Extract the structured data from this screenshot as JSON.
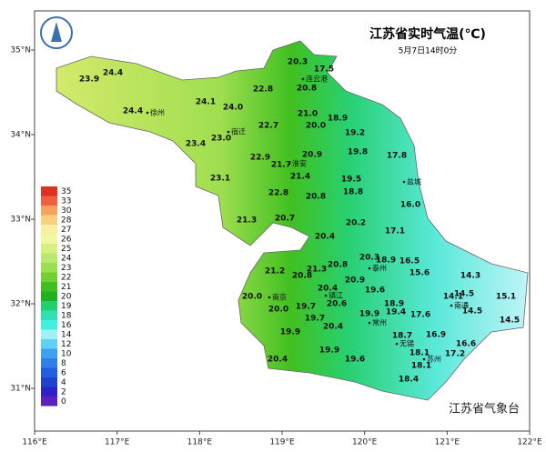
{
  "header": {
    "title": "江苏省实时气温(℃)",
    "subtitle": "5月7日14时0分"
  },
  "axes": {
    "lat": [
      "35°N",
      "34°N",
      "33°N",
      "32°N",
      "31°N"
    ],
    "lon": [
      "116°E",
      "117°E",
      "118°E",
      "119°E",
      "120°E",
      "121°E",
      "122°E"
    ]
  },
  "legend": {
    "values": [
      35,
      33,
      30,
      28,
      27,
      26,
      25,
      24,
      23,
      22,
      21,
      20,
      19,
      18,
      16,
      14,
      12,
      10,
      8,
      6,
      4,
      2,
      0
    ],
    "colors": [
      "#e03020",
      "#f06040",
      "#f8a060",
      "#f8d080",
      "#f8f0a0",
      "#f0f8a0",
      "#d8f080",
      "#b8e870",
      "#98e050",
      "#70d030",
      "#40c020",
      "#20b020",
      "#20d070",
      "#30e0b0",
      "#40f0e0",
      "#a0f0f8",
      "#60d0f8",
      "#40a0f0",
      "#3080e8",
      "#2060e0",
      "#2040d0",
      "#3020c8",
      "#6020c0"
    ]
  },
  "cities": [
    "连云港",
    "徐州",
    "宿迁",
    "淮安",
    "盐城",
    "泰州",
    "南京",
    "镇江",
    "常州",
    "南通",
    "无锡",
    "苏州"
  ],
  "stations": [
    "23.9",
    "24.4",
    "24.4",
    "24.1",
    "24.0",
    "22.8",
    "20.3",
    "17.5",
    "20.8",
    "23.0",
    "23.4",
    "22.7",
    "21.0",
    "20.0",
    "18.9",
    "19.2",
    "22.9",
    "21.7",
    "20.9",
    "19.8",
    "17.8",
    "21.4",
    "23.1",
    "19.5",
    "22.8",
    "20.8",
    "18.8",
    "16.0",
    "21.3",
    "20.7",
    "20.2",
    "17.1",
    "20.4",
    "20.3",
    "18.9",
    "16.5",
    "15.6",
    "14.3",
    "21.2",
    "20.8",
    "21.3",
    "20.8",
    "20.9",
    "20.4",
    "19.6",
    "20.0",
    "20.6",
    "14.1",
    "14.5",
    "15.1",
    "20.0",
    "19.7",
    "18.9",
    "19.9",
    "19.4",
    "17.6",
    "14.5",
    "19.7",
    "20.4",
    "14.5",
    "19.9",
    "18.7",
    "16.9",
    "18.1",
    "16.6",
    "17.2",
    "19.9",
    "18.1",
    "20.4",
    "19.6",
    "18.4"
  ],
  "footer": "江苏省气象台"
}
